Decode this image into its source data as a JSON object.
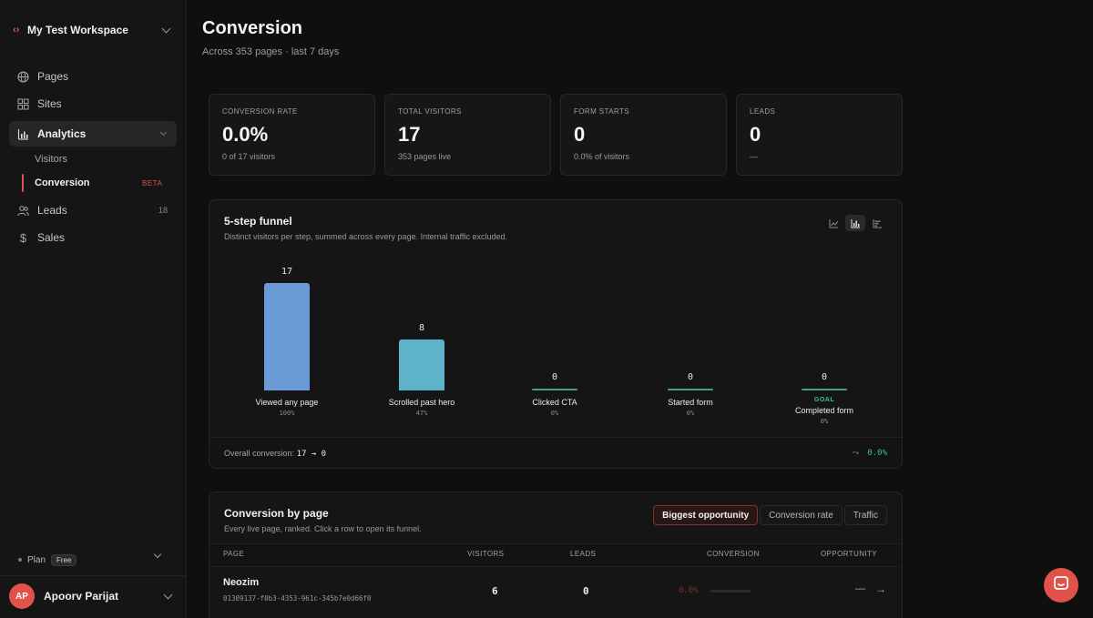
{
  "sidebar": {
    "workspace": {
      "logo": "‹›",
      "name": "My Test Workspace"
    },
    "nav": [
      {
        "label": "Pages",
        "icon": "globe-icon"
      },
      {
        "label": "Sites",
        "icon": "grid-icon"
      },
      {
        "label": "Analytics",
        "icon": "bar-chart-icon"
      },
      {
        "label": "Leads",
        "icon": "users-icon",
        "count": "18"
      },
      {
        "label": "Sales",
        "icon": "dollar-icon"
      }
    ],
    "analytics_sub": [
      {
        "label": "Visitors"
      },
      {
        "label": "Conversion",
        "badge": "BETA"
      }
    ],
    "plan": {
      "label": "Plan",
      "tier": "Free"
    },
    "user": {
      "initials": "AP",
      "name": "Apoorv Parijat"
    }
  },
  "header": {
    "title": "Conversion",
    "subtitle": "Across 353 pages · last 7 days"
  },
  "stats": [
    {
      "label": "CONVERSION RATE",
      "value": "0.0%",
      "caption": "0 of 17 visitors"
    },
    {
      "label": "TOTAL VISITORS",
      "value": "17",
      "caption": "353 pages live"
    },
    {
      "label": "FORM STARTS",
      "value": "0",
      "caption": "0.0% of visitors"
    },
    {
      "label": "LEADS",
      "value": "0",
      "caption": "—"
    }
  ],
  "funnel": {
    "title": "5-step funnel",
    "description": "Distinct visitors per step, summed across every page. Internal traffic excluded.",
    "goal_label": "GOAL",
    "footer_label": "Overall conversion:",
    "footer_flow": "17 → 0",
    "footer_rate": "0.0%",
    "steps": [
      {
        "label": "Viewed any page",
        "value": "17",
        "pct": "100%"
      },
      {
        "label": "Scrolled past hero",
        "value": "8",
        "pct": "47%"
      },
      {
        "label": "Clicked CTA",
        "value": "0",
        "pct": "0%"
      },
      {
        "label": "Started form",
        "value": "0",
        "pct": "0%"
      },
      {
        "label": "Completed form",
        "value": "0",
        "pct": "0%"
      }
    ]
  },
  "chart_data": {
    "type": "bar",
    "categories": [
      "Viewed any page",
      "Scrolled past hero",
      "Clicked CTA",
      "Started form",
      "Completed form"
    ],
    "values": [
      17,
      8,
      0,
      0,
      0
    ],
    "title": "5-step funnel",
    "xlabel": "",
    "ylabel": "",
    "ylim": [
      0,
      17
    ],
    "colors": [
      "#6a9bd6",
      "#5fb3c8",
      "#3aa38a",
      "#3aa38a",
      "#3aa38a"
    ]
  },
  "by_page": {
    "title": "Conversion by page",
    "description": "Every live page, ranked. Click a row to open its funnel.",
    "tabs": [
      "Biggest opportunity",
      "Conversion rate",
      "Traffic"
    ],
    "columns": [
      "PAGE",
      "VISITORS",
      "LEADS",
      "CONVERSION",
      "OPPORTUNITY"
    ],
    "rows": [
      {
        "name": "Neozim",
        "id": "01309137-f0b3-4353-961c-345b7e0d66f0",
        "visitors": "6",
        "leads": "0",
        "conversion": "0.0%",
        "opportunity": "—"
      }
    ]
  },
  "colors": {
    "accent": "#e0524a",
    "bar1": "#6a9bd6",
    "bar2": "#5fb3c8",
    "goal": "#3fbf95"
  }
}
